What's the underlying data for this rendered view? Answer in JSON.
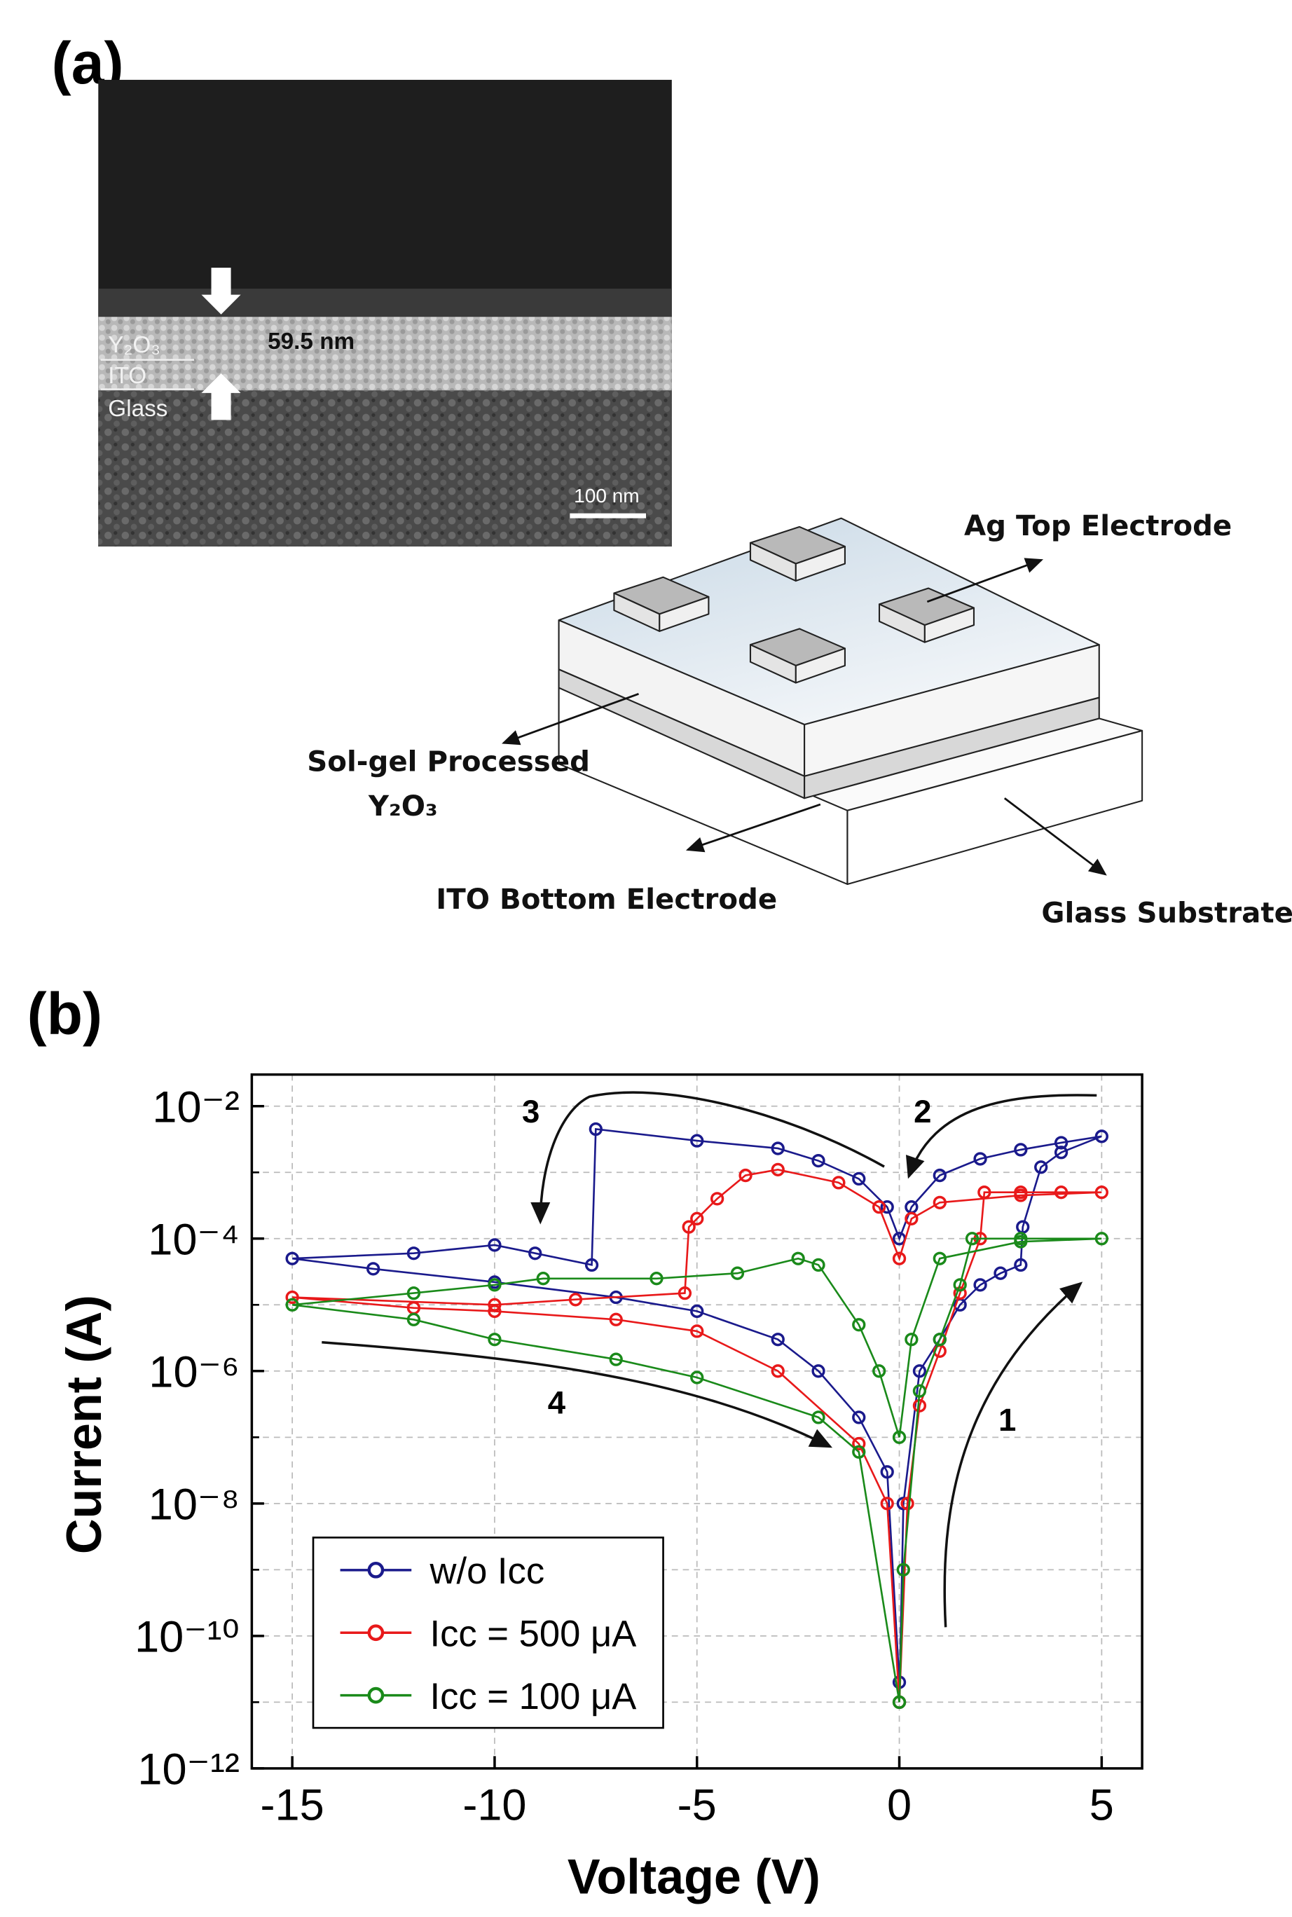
{
  "panels": [
    "(a)",
    "(b)"
  ],
  "sem": {
    "layers": [
      "Y₂O₃",
      "ITO",
      "Glass"
    ],
    "thickness": "59.5 nm",
    "scale_bar": "100 nm"
  },
  "schematic": {
    "top_electrode": "Ag Top Electrode",
    "film_line1": "Sol-gel Processed",
    "film_line2": "Y₂O₃",
    "bottom_electrode": "ITO Bottom Electrode",
    "substrate": "Glass Substrate"
  },
  "chart_data": {
    "type": "line",
    "y_scale": "log",
    "grid": true,
    "legend": "lower left",
    "xlabel": "Voltage (V)",
    "ylabel": "Current (A)",
    "xlim": [
      -16,
      6
    ],
    "xticks": [
      -15,
      -10,
      -5,
      0,
      5
    ],
    "ylim": [
      1e-12,
      0.03
    ],
    "yticks": [
      {
        "value": 1e-12,
        "label": "10⁻¹²"
      },
      {
        "value": 1e-10,
        "label": "10⁻¹⁰"
      },
      {
        "value": 1e-08,
        "label": "10⁻⁸"
      },
      {
        "value": 1e-06,
        "label": "10⁻⁶"
      },
      {
        "value": 0.0001,
        "label": "10⁻⁴"
      },
      {
        "value": 0.01,
        "label": "10⁻²"
      }
    ],
    "y_minor_ticks": [
      1e-11,
      1e-09,
      1e-07,
      1e-05,
      0.001
    ],
    "annotations": [
      "1",
      "2",
      "3",
      "4"
    ],
    "series": [
      {
        "name": "w/o Icc",
        "color": "#1a1a8c",
        "x": [
          0,
          0.1,
          0.5,
          1,
          1.5,
          2,
          2.5,
          3,
          3.05,
          3.5,
          4,
          5,
          4,
          3,
          2,
          1,
          0.3,
          0,
          -0.3,
          -1,
          -2,
          -3,
          -5,
          -7.5,
          -7.6,
          -9,
          -10,
          -12,
          -15,
          -13,
          -10,
          -7,
          -5,
          -3,
          -2,
          -1,
          -0.3,
          0
        ],
        "values": [
          1e-11,
          1e-08,
          1e-06,
          3e-06,
          1e-05,
          2e-05,
          3e-05,
          4e-05,
          0.00015,
          0.0012,
          0.002,
          0.0035,
          0.0028,
          0.0022,
          0.0016,
          0.0009,
          0.0003,
          0.0001,
          0.0003,
          0.0008,
          0.0015,
          0.0023,
          0.003,
          0.0045,
          4e-05,
          6e-05,
          8e-05,
          6e-05,
          5e-05,
          3.5e-05,
          2.2e-05,
          1.3e-05,
          8e-06,
          3e-06,
          1e-06,
          2e-07,
          3e-08,
          2e-11
        ]
      },
      {
        "name": "Icc = 500 μA",
        "color": "#e8191a",
        "x": [
          0,
          0.2,
          0.5,
          1,
          1.5,
          2,
          2.1,
          3,
          4,
          5,
          3,
          1,
          0.3,
          0,
          -0.5,
          -1.5,
          -3,
          -3.8,
          -4.5,
          -5,
          -5.2,
          -5.3,
          -8,
          -10,
          -15,
          -12,
          -10,
          -7,
          -5,
          -3,
          -1,
          -0.3,
          0
        ],
        "values": [
          1e-11,
          1e-08,
          3e-07,
          2e-06,
          1.5e-05,
          0.0001,
          0.0005,
          0.0005,
          0.0005,
          0.0005,
          0.00045,
          0.00035,
          0.0002,
          5e-05,
          0.0003,
          0.0007,
          0.0011,
          0.0009,
          0.0004,
          0.0002,
          0.00015,
          1.5e-05,
          1.2e-05,
          1e-05,
          1.3e-05,
          9e-06,
          8e-06,
          6e-06,
          4e-06,
          1e-06,
          8e-08,
          1e-08,
          1e-11
        ]
      },
      {
        "name": "Icc = 100 μA",
        "color": "#1a8a1a",
        "x": [
          0,
          0.1,
          0.5,
          1,
          1.5,
          1.8,
          3,
          5,
          3,
          1,
          0.3,
          0,
          -0.5,
          -1,
          -2,
          -2.5,
          -4,
          -6,
          -8.8,
          -10,
          -12,
          -15,
          -12,
          -10,
          -7,
          -5,
          -2,
          -1,
          0
        ],
        "values": [
          1e-11,
          1e-09,
          5e-07,
          3e-06,
          2e-05,
          0.0001,
          0.0001,
          0.0001,
          9e-05,
          5e-05,
          3e-06,
          1e-07,
          1e-06,
          5e-06,
          4e-05,
          5e-05,
          3e-05,
          2.5e-05,
          2.5e-05,
          2e-05,
          1.5e-05,
          1e-05,
          6e-06,
          3e-06,
          1.5e-06,
          8e-07,
          2e-07,
          6e-08,
          1e-11
        ]
      }
    ]
  }
}
